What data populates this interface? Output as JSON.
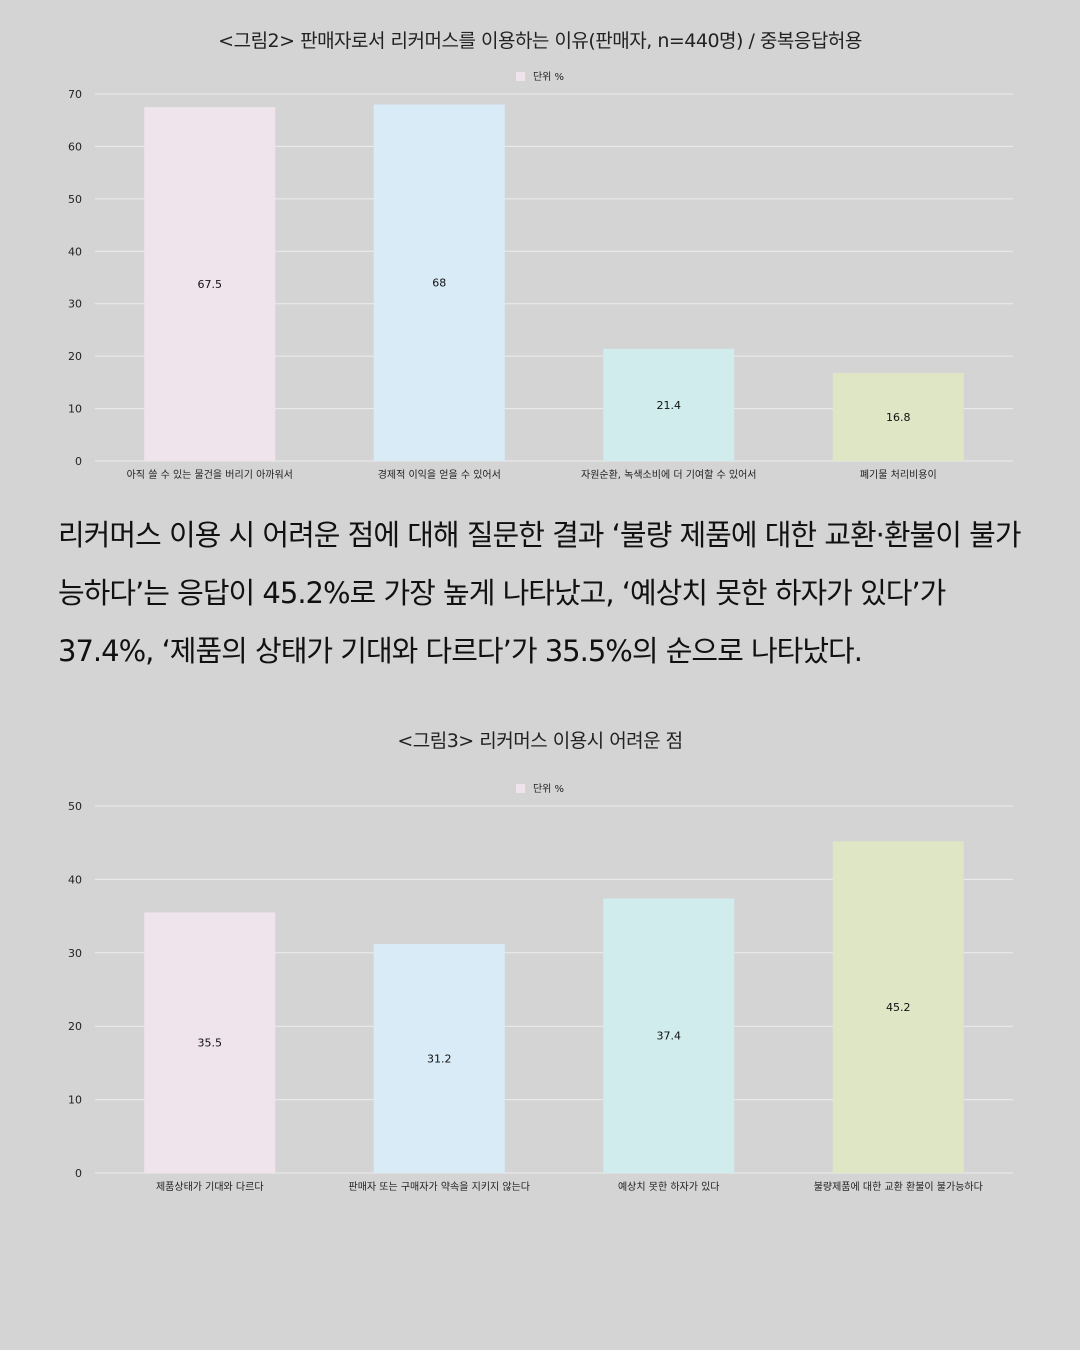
{
  "charts": [
    {
      "title": "<그림2> 판매자로서 리커머스를 이용하는 이유(판매자, n=440명) / 중복응답허용",
      "legend": "단위 %"
    },
    {
      "title": "<그림3> 리커머스 이용시 어려운 점",
      "legend": "단위 %"
    }
  ],
  "paragraph": "리커머스 이용 시 어려운 점에 대해 질문한 결과 ‘불량 제품에 대한 교환·환불이 불가능하다’는 응답이 45.2%로 가장 높게 나타났고, ‘예상치 못한 하자가 있다’가 37.4%, ‘제품의 상태가 기대와 다르다’가 35.5%의 순으로 나타났다.",
  "colors": {
    "background": "#d4d4d4",
    "bar_colors": [
      "#efe4ec",
      "#d8ebf6",
      "#d1eced",
      "#dfe6c5"
    ],
    "legend_swatch": "#efe4ec",
    "grid": "#ededed"
  },
  "chart_data": [
    {
      "type": "bar",
      "title": "<그림2> 판매자로서 리커머스를 이용하는 이유(판매자, n=440명) / 중복응답허용",
      "legend": "단위 %",
      "legend_position": "top-center",
      "categories": [
        "아직 쓸 수 있는 물건을 버리기 아까워서",
        "경제적 이익을 얻을 수 있어서",
        "자원순환, 녹색소비에 더 기여할 수 있어서",
        "폐기물 처리비용이"
      ],
      "series": [
        {
          "name": "단위 %",
          "values": [
            67.5,
            68,
            21.4,
            16.8
          ]
        }
      ],
      "data_labels": [
        "67.5",
        "68",
        "21.4",
        "16.8"
      ],
      "yticks": [
        0,
        10,
        20,
        30,
        40,
        50,
        60,
        70
      ],
      "ylim": [
        0,
        70
      ],
      "grid": true
    },
    {
      "type": "bar",
      "title": "<그림3> 리커머스 이용시 어려운 점",
      "legend": "단위 %",
      "legend_position": "top-center",
      "categories": [
        "제품상태가 기대와 다르다",
        "판매자 또는 구매자가 약속을 지키지 않는다",
        "예상치 못한 하자가 있다",
        "불량제품에 대한 교환 환불이 불가능하다"
      ],
      "series": [
        {
          "name": "단위 %",
          "values": [
            35.5,
            31.2,
            37.4,
            45.2
          ]
        }
      ],
      "data_labels": [
        "35.5",
        "31.2",
        "37.4",
        "45.2"
      ],
      "yticks": [
        0,
        10,
        20,
        30,
        40,
        50
      ],
      "ylim": [
        0,
        50
      ],
      "grid": true
    }
  ]
}
